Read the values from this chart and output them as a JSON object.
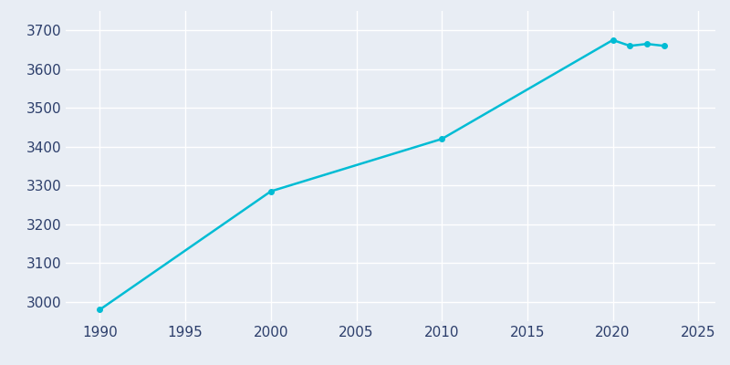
{
  "years": [
    1990,
    2000,
    2010,
    2020,
    2021,
    2022,
    2023
  ],
  "population": [
    2980,
    3285,
    3420,
    3675,
    3660,
    3665,
    3660
  ],
  "line_color": "#00bcd4",
  "marker": "o",
  "marker_size": 4,
  "line_width": 1.8,
  "bg_color": "#e8edf4",
  "axes_bg_color": "#e8edf4",
  "grid_color": "#ffffff",
  "tick_color": "#2c3e6b",
  "xlim": [
    1988,
    2026
  ],
  "ylim": [
    2950,
    3750
  ],
  "xticks": [
    1990,
    1995,
    2000,
    2005,
    2010,
    2015,
    2020,
    2025
  ],
  "yticks": [
    3000,
    3100,
    3200,
    3300,
    3400,
    3500,
    3600,
    3700
  ],
  "tick_fontsize": 11
}
